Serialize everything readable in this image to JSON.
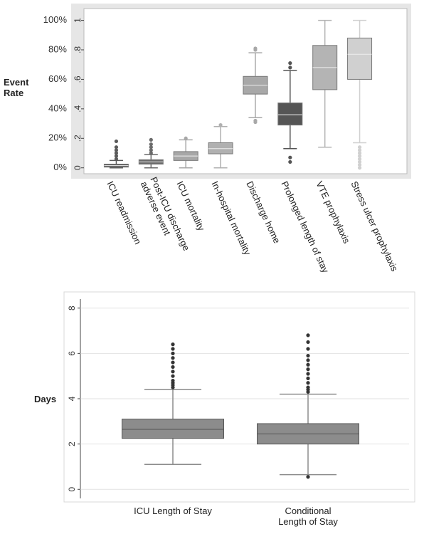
{
  "chart_data": [
    {
      "type": "box",
      "y_label": "Event Rate",
      "categories": [
        "ICU readmission",
        "Post-ICU discharge adverse event",
        "ICU mortality",
        "In-hospital mortality",
        "Discharge home",
        "Prolonged length of stay",
        "VTE prophylaxis",
        "Stress ulcer prophylaxis"
      ],
      "boxes": [
        {
          "whisker_low": 0.0,
          "q1": 0.005,
          "median": 0.015,
          "q3": 0.025,
          "whisker_high": 0.05,
          "outliers": [
            0.06,
            0.08,
            0.1,
            0.12,
            0.14,
            0.18
          ],
          "color": "#5a5a5a"
        },
        {
          "whisker_low": 0.0,
          "q1": 0.025,
          "median": 0.04,
          "q3": 0.055,
          "whisker_high": 0.09,
          "outliers": [
            0.1,
            0.12,
            0.14,
            0.16,
            0.19
          ],
          "color": "#6a6a6a"
        },
        {
          "whisker_low": 0.0,
          "q1": 0.05,
          "median": 0.08,
          "q3": 0.11,
          "whisker_high": 0.19,
          "outliers": [
            0.2
          ],
          "color": "#a8a8a8"
        },
        {
          "whisker_low": 0.0,
          "q1": 0.095,
          "median": 0.13,
          "q3": 0.17,
          "whisker_high": 0.28,
          "outliers": [
            0.29
          ],
          "color": "#b0b0b0"
        },
        {
          "whisker_low": 0.34,
          "q1": 0.5,
          "median": 0.56,
          "q3": 0.62,
          "whisker_high": 0.78,
          "outliers": [
            0.8,
            0.81,
            0.32,
            0.31
          ],
          "color": "#a8a8a8"
        },
        {
          "whisker_low": 0.13,
          "q1": 0.29,
          "median": 0.36,
          "q3": 0.44,
          "whisker_high": 0.66,
          "outliers": [
            0.68,
            0.71,
            0.07,
            0.04
          ],
          "color": "#555555"
        },
        {
          "whisker_low": 0.14,
          "q1": 0.53,
          "median": 0.68,
          "q3": 0.83,
          "whisker_high": 1.0,
          "outliers": [],
          "color": "#b4b4b4"
        },
        {
          "whisker_low": 0.17,
          "q1": 0.6,
          "median": 0.77,
          "q3": 0.88,
          "whisker_high": 1.0,
          "outliers": [
            0.14,
            0.12,
            0.1,
            0.08,
            0.06,
            0.04,
            0.02,
            0.0
          ],
          "color": "#d0d0d0"
        }
      ],
      "ylim": [
        -0.04,
        1.08
      ],
      "yticks": [
        0,
        {
          "value": 0.2,
          "label": ".2"
        },
        {
          "value": 0.4,
          "label": ".4"
        },
        {
          "value": 0.6,
          "label": ".6"
        },
        {
          "value": 0.8,
          "label": ".8"
        },
        1
      ],
      "y2lim": [
        -0.04,
        1.08
      ],
      "y2ticks": [
        {
          "value": 0,
          "label": "0%"
        },
        {
          "value": 0.2,
          "label": "20%"
        },
        {
          "value": 0.4,
          "label": "40%"
        },
        {
          "value": 0.6,
          "label": "60%"
        },
        {
          "value": 0.8,
          "label": "80%"
        },
        {
          "value": 1,
          "label": "100%"
        }
      ],
      "grid": false
    },
    {
      "type": "box",
      "y_label": "Days",
      "categories": [
        "ICU Length of Stay",
        "Conditional Length of Stay"
      ],
      "boxes": [
        {
          "whisker_low": 1.1,
          "q1": 2.25,
          "median": 2.65,
          "q3": 3.1,
          "whisker_high": 4.4,
          "outliers": [
            4.5,
            4.6,
            4.7,
            4.8,
            5.0,
            5.2,
            5.4,
            5.6,
            5.8,
            6.0,
            6.2,
            6.4
          ],
          "color": "#8c8c8c"
        },
        {
          "whisker_low": 0.65,
          "q1": 2.0,
          "median": 2.45,
          "q3": 2.9,
          "whisker_high": 4.2,
          "outliers": [
            4.3,
            4.4,
            4.5,
            4.7,
            4.9,
            5.1,
            5.3,
            5.5,
            5.7,
            5.9,
            6.2,
            6.5,
            6.8,
            0.55
          ],
          "color": "#8c8c8c"
        }
      ],
      "ylim": [
        -0.4,
        8.4
      ],
      "yticks": [
        0,
        2,
        4,
        6,
        8
      ],
      "grid": true
    }
  ]
}
